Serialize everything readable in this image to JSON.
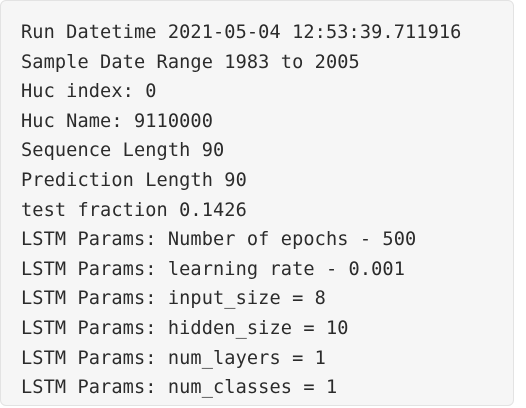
{
  "log": {
    "lines": [
      "Run Datetime 2021-05-04 12:53:39.711916",
      "Sample Date Range 1983 to 2005",
      "Huc index: 0",
      "Huc Name: 9110000",
      "Sequence Length 90",
      "Prediction Length 90",
      "test fraction 0.1426",
      "LSTM Params: Number of epochs - 500",
      "LSTM Params: learning rate - 0.001",
      "LSTM Params: input_size = 8",
      "LSTM Params: hidden_size = 10",
      "LSTM Params: num_layers = 1",
      "LSTM Params: num_classes = 1"
    ]
  }
}
